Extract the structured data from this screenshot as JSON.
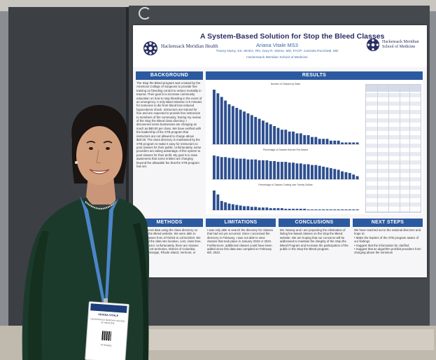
{
  "poster": {
    "title": "A System-Based Solution for Stop the Bleed Classes",
    "author": "Ariana Vitale MS3",
    "coauthors": "Tracey Namy, SS, MHSA, RN; Gary R. Weine, MD, FACP; Carmela Rocchetti, MD",
    "school": "Hackensack Meridian School of Medicine",
    "logo_left": "Hackensack Meridian Health",
    "logo_right": "Hackensack Meridian School of Medicine",
    "sections": {
      "background": {
        "heading": "BACKGROUND",
        "text": "The Stop the Bleed program was created by the American College of Surgeons to provide free training on bleeding control to reduce mortality in trauma. Their goal is to increase community education on how to stop bleeding in the event of an emergency. It only takes between 2-5 minutes for someone to die from blood loss induced hypovolemic shock. Instructors are trained for free and are expected to provide free instruction to members of the community. During my review of the Stop the Bleed class directory, I discovered some businesses are charging as much as $80.00 per class. We have verified with the leadership of the STB program that instructors are not allowed to charge above $20.00. The class directory is maintained by the STB program to make it easy for instructors to post classes for their public. Unfortunately, some providers are taking advantage of this system to post classes for their profit. My goal is to raise awareness that some entities are charging beyond the allowable fee that the STB program has set."
      },
      "methods": {
        "heading": "METHODS",
        "text": "We gathered data using the class directory on the Stop the Bleed website. We were able to collect classes from 2/7/2023 to 12/31/2023. We organized the data into location, cost, class time, fee, instructor. Unfortunately, there are classes posted in US territories. District of Columbia, Iowa, Mississippi, Rhode Island, Vermont, or Wyoming."
      },
      "results": {
        "heading": "RESULTS"
      },
      "limitations": {
        "heading": "LIMITATIONS",
        "text": "I was only able to search the directory for classes that had not yet occurred. Since I accessed the directory in February, I was not able to view classes that took place in January 2023 or 2022. Furthermore, additional classes could have been added since this data was compiled on February 6th, 2023."
      },
      "conclusions": {
        "heading": "CONCLUSIONS",
        "text": "Ms. Namay and I are proposing the elimination of listing fee-based classes on the Stop the Bleed website. We are hoping that our concerns will be addressed to maintain the integrity of the Stop the Bleed Program and increase the participation of the public in the Stop the Bleed program."
      },
      "next_steps": {
        "heading": "NEXT STEPS",
        "intro": "We have reached out to the national directors and hope to:",
        "bullets": [
          "Make the leaders of the STB program aware of our findings",
          "Suggest that the information be clarified",
          "Suggest that an algorithm prohibit providers from charging above the minimum"
        ]
      }
    },
    "charts": [
      {
        "title": "Number of Classes by State",
        "values": [
          30,
          28,
          26,
          24,
          22,
          21,
          20,
          19,
          18,
          17,
          16,
          15,
          14,
          13,
          12,
          11,
          10,
          9,
          8,
          8,
          7,
          7,
          6,
          6,
          5,
          5,
          4,
          4,
          3,
          3,
          3,
          2,
          2,
          2,
          1,
          1,
          1,
          1,
          1
        ]
      },
      {
        "title": "Percentage of Classes that are Fee-Based",
        "values": [
          30,
          29,
          28,
          28,
          27,
          27,
          26,
          26,
          26,
          25,
          25,
          25,
          24,
          24,
          24,
          23,
          23,
          22,
          22,
          22,
          21,
          21,
          20,
          20,
          19,
          19,
          18,
          18,
          17,
          16,
          15,
          14,
          13,
          12,
          10,
          9,
          8,
          6,
          4
        ]
      },
      {
        "title": "Percentage of Classes Costing over Twenty Dollars",
        "values": [
          30,
          24,
          14,
          12,
          10,
          9,
          8,
          7,
          6,
          6,
          5,
          5,
          4,
          4,
          4,
          3,
          3,
          3,
          3,
          2,
          2,
          2,
          2,
          2,
          2,
          1,
          1,
          1,
          1,
          1,
          1,
          1,
          1,
          1,
          1,
          1,
          1,
          1,
          1
        ]
      }
    ]
  },
  "badge": {
    "name": "ARIANA VITALE",
    "org": "HACKENSACK MERIDIAN SCHOOL OF MEDICINE",
    "type": "ATTENDEE"
  },
  "colors": {
    "poster_blue": "#2c5aa0",
    "poster_navy": "#2a2f63",
    "dress": "#1c3a2c",
    "lanyard": "#4a86c8"
  }
}
